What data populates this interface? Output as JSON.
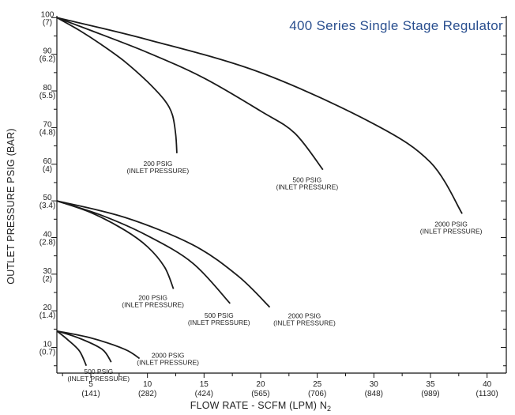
{
  "chart_data": {
    "type": "line",
    "title": "400 Series Single Stage Regulator",
    "xlabel": "FLOW RATE - SCFM (LPM) N",
    "xlabel_subscript": "2",
    "ylabel": "OUTLET PRESSURE PSIG (BAR)",
    "xlim": [
      2,
      41.7
    ],
    "ylim": [
      3,
      100.5
    ],
    "grid": false,
    "x_ticks": [
      {
        "value": 5,
        "primary": "5",
        "secondary": "(141)"
      },
      {
        "value": 10,
        "primary": "10",
        "secondary": "(282)"
      },
      {
        "value": 15,
        "primary": "15",
        "secondary": "(424)"
      },
      {
        "value": 20,
        "primary": "20",
        "secondary": "(565)"
      },
      {
        "value": 25,
        "primary": "25",
        "secondary": "(706)"
      },
      {
        "value": 30,
        "primary": "30",
        "secondary": "(848)"
      },
      {
        "value": 35,
        "primary": "35",
        "secondary": "(989)"
      },
      {
        "value": 40,
        "primary": "40",
        "secondary": "(1130)"
      }
    ],
    "y_ticks": [
      {
        "value": 100,
        "primary": "100",
        "secondary": "(7)"
      },
      {
        "value": 90,
        "primary": "90",
        "secondary": "(6.2)"
      },
      {
        "value": 80,
        "primary": "80",
        "secondary": "(5.5)"
      },
      {
        "value": 70,
        "primary": "70",
        "secondary": "(4.8)"
      },
      {
        "value": 60,
        "primary": "60",
        "secondary": "(4)"
      },
      {
        "value": 50,
        "primary": "50",
        "secondary": "(3.4)"
      },
      {
        "value": 40,
        "primary": "40",
        "secondary": "(2.8)"
      },
      {
        "value": 30,
        "primary": "30",
        "secondary": "(2)"
      },
      {
        "value": 20,
        "primary": "20",
        "secondary": "(1.4)"
      },
      {
        "value": 10,
        "primary": "10",
        "secondary": "(0.7)"
      }
    ],
    "series": [
      {
        "label_line1": "200 PSIG",
        "label_line2": "(INLET PRESSURE)",
        "x": [
          2,
          4,
          6,
          8,
          10,
          11.5,
          12.2,
          12.5,
          12.6
        ],
        "y": [
          100,
          96.5,
          92.5,
          88,
          82.5,
          77.5,
          73.5,
          68,
          63
        ]
      },
      {
        "label_line1": "500 PSIG",
        "label_line2": "(INLET PRESSURE)",
        "x": [
          2,
          5,
          10,
          15,
          20,
          23,
          25.5
        ],
        "y": [
          100,
          96.5,
          90.5,
          83.5,
          74.5,
          68.5,
          58.5
        ]
      },
      {
        "label_line1": "2000 PSIG",
        "label_line2": "(INLET PRESSURE)",
        "x": [
          2,
          10,
          20,
          30,
          35,
          37.8
        ],
        "y": [
          100,
          94,
          85,
          71,
          60.5,
          46.5
        ]
      },
      {
        "label_line1": "200 PSIG",
        "label_line2": "(INLET PRESSURE)",
        "x": [
          2,
          5,
          8,
          10,
          11.5,
          12.3
        ],
        "y": [
          50,
          46.8,
          42,
          37.5,
          32,
          26
        ]
      },
      {
        "label_line1": "500 PSIG",
        "label_line2": "(INLET PRESSURE)",
        "x": [
          2,
          6,
          10,
          14,
          17.3
        ],
        "y": [
          50,
          46,
          40.5,
          33,
          22
        ]
      },
      {
        "label_line1": "2000 PSIG",
        "label_line2": "(INLET PRESSURE)",
        "x": [
          2,
          8,
          14,
          18,
          20.8
        ],
        "y": [
          50,
          45.5,
          38,
          29.5,
          21
        ]
      },
      {
        "label_line1": "",
        "label_line2": "",
        "x": [
          2,
          3,
          4,
          4.6
        ],
        "y": [
          14.5,
          12,
          9,
          5
        ]
      },
      {
        "label_line1": "500 PSIG",
        "label_line2": "(INLET PRESSURE)",
        "x": [
          2,
          4,
          6,
          6.8
        ],
        "y": [
          14.5,
          12.5,
          9.5,
          6
        ]
      },
      {
        "label_line1": "2000 PSIG",
        "label_line2": "(INLET PRESSURE)",
        "x": [
          2,
          5,
          8,
          9.3
        ],
        "y": [
          14.5,
          12.6,
          9.5,
          7
        ]
      }
    ]
  }
}
